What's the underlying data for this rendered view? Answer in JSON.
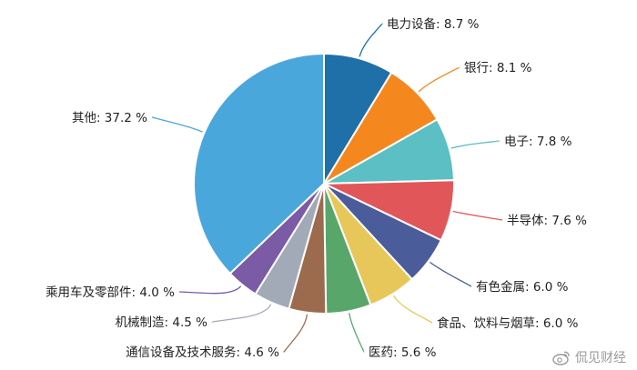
{
  "chart_data": {
    "type": "pie",
    "slices": [
      {
        "label": "电力设备",
        "value": 8.7,
        "display": "电力设备: 8.7 %",
        "color": "#1f6fa8"
      },
      {
        "label": "银行",
        "value": 8.1,
        "display": "银行: 8.1 %",
        "color": "#f5871f"
      },
      {
        "label": "电子",
        "value": 7.8,
        "display": "电子: 7.8 %",
        "color": "#5bbfc4"
      },
      {
        "label": "半导体",
        "value": 7.6,
        "display": "半导体: 7.6 %",
        "color": "#e15759"
      },
      {
        "label": "有色金属",
        "value": 6.0,
        "display": "有色金属: 6.0 %",
        "color": "#4b5c9b"
      },
      {
        "label": "食品、饮料与烟草",
        "value": 6.0,
        "display": "食品、饮料与烟草: 6.0 %",
        "color": "#e8c75a"
      },
      {
        "label": "医药",
        "value": 5.6,
        "display": "医药: 5.6 %",
        "color": "#59a66b"
      },
      {
        "label": "通信设备及技术服务",
        "value": 4.6,
        "display": "通信设备及技术服务: 4.6 %",
        "color": "#9c6b4e"
      },
      {
        "label": "机械制造",
        "value": 4.5,
        "display": "机械制造: 4.5 %",
        "color": "#a2aab7"
      },
      {
        "label": "乘用车及零部件",
        "value": 4.0,
        "display": "乘用车及零部件: 4.0 %",
        "color": "#7b5aa6"
      },
      {
        "label": "其他",
        "value": 37.2,
        "display": "其他: 37.2 %",
        "color": "#4aa7dc"
      }
    ],
    "start": "12 o'clock",
    "direction": "clockwise",
    "legend": "none (leader-line labels)"
  },
  "watermark": {
    "text": "侃见财经",
    "icon": "weibo-icon"
  }
}
